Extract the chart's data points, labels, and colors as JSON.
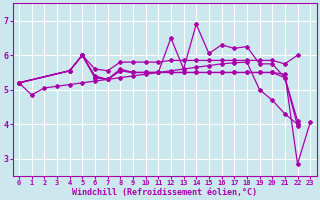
{
  "background_color": "#cce8ee",
  "line_color": "#aa00aa",
  "grid_color": "#aadddd",
  "xlabel": "Windchill (Refroidissement éolien,°C)",
  "xlim": [
    -0.5,
    23.5
  ],
  "ylim": [
    2.5,
    7.5
  ],
  "yticks": [
    3,
    4,
    5,
    6,
    7
  ],
  "xticks": [
    0,
    1,
    2,
    3,
    4,
    5,
    6,
    7,
    8,
    9,
    10,
    11,
    12,
    13,
    14,
    15,
    16,
    17,
    18,
    19,
    20,
    21,
    22,
    23
  ],
  "series": {
    "s1_x": [
      0,
      1,
      2,
      3,
      4,
      5,
      6,
      7,
      8,
      9,
      10,
      11,
      12,
      13,
      14,
      15,
      16,
      17,
      18,
      19,
      20,
      21,
      22
    ],
    "s1_y": [
      5.2,
      4.85,
      5.05,
      5.1,
      5.15,
      5.2,
      5.25,
      5.3,
      5.35,
      5.4,
      5.45,
      5.5,
      5.55,
      5.6,
      5.65,
      5.7,
      5.75,
      5.78,
      5.8,
      5.0,
      4.7,
      4.3,
      4.0
    ],
    "s2_x": [
      0,
      4,
      5,
      6,
      7,
      8,
      9,
      10,
      11,
      12,
      13,
      14,
      15,
      16,
      17,
      18,
      19,
      20,
      21,
      22
    ],
    "s2_y": [
      5.2,
      5.55,
      6.0,
      5.6,
      5.55,
      5.8,
      5.8,
      5.8,
      5.8,
      5.85,
      5.85,
      5.85,
      5.85,
      5.85,
      5.85,
      5.85,
      5.85,
      5.85,
      5.75,
      6.0
    ],
    "s3_x": [
      0,
      4,
      5,
      6,
      7,
      8,
      9,
      10,
      11,
      12,
      13,
      14,
      15,
      16,
      17,
      18,
      19,
      20,
      21,
      22
    ],
    "s3_y": [
      5.2,
      5.55,
      6.0,
      5.35,
      5.3,
      5.55,
      5.5,
      5.5,
      5.5,
      6.5,
      5.6,
      6.9,
      6.05,
      6.3,
      6.2,
      6.25,
      5.75,
      5.75,
      5.35,
      3.95
    ],
    "s4_x": [
      0,
      4,
      5,
      6,
      7,
      8,
      9,
      10,
      11,
      12,
      13,
      14,
      15,
      16,
      17,
      18,
      19,
      20,
      21,
      22
    ],
    "s4_y": [
      5.2,
      5.55,
      6.0,
      5.35,
      5.3,
      5.55,
      5.5,
      5.5,
      5.5,
      5.5,
      5.5,
      5.5,
      5.5,
      5.5,
      5.5,
      5.5,
      5.5,
      5.5,
      5.35,
      4.1
    ],
    "s5_x": [
      0,
      4,
      5,
      6,
      7,
      8,
      9,
      10,
      11,
      12,
      13,
      14,
      15,
      16,
      17,
      18,
      19,
      20,
      21,
      22,
      23
    ],
    "s5_y": [
      5.2,
      5.55,
      6.0,
      5.4,
      5.3,
      5.6,
      5.5,
      5.5,
      5.5,
      5.5,
      5.5,
      5.5,
      5.5,
      5.5,
      5.5,
      5.5,
      5.5,
      5.5,
      5.45,
      2.85,
      4.05
    ]
  },
  "marker": "D",
  "marker_size": 2,
  "linewidth": 0.9,
  "tick_fontsize": 5,
  "xlabel_fontsize": 6
}
